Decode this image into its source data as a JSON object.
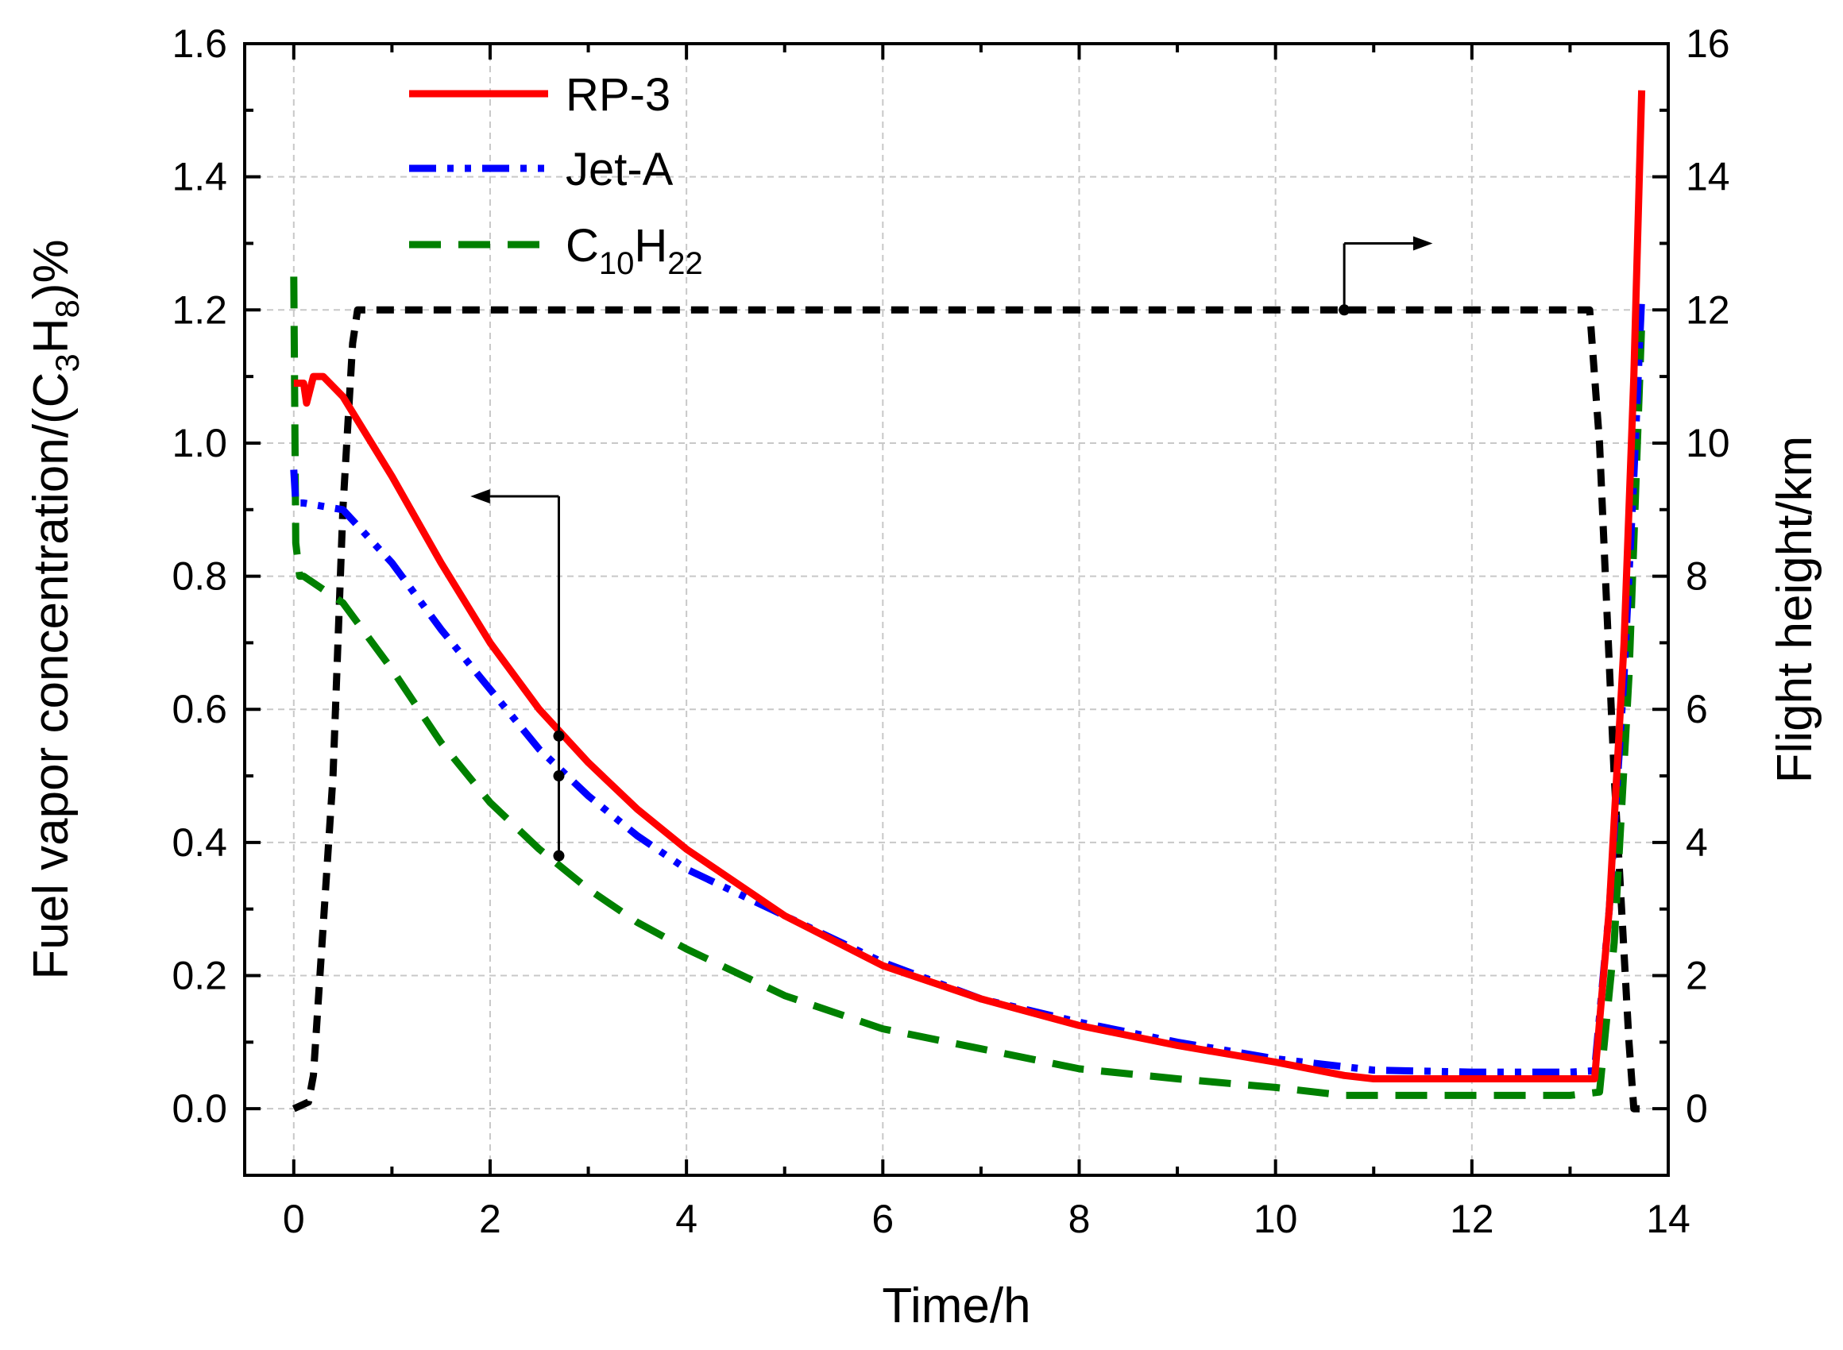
{
  "chart_data": {
    "type": "line",
    "title": "",
    "xlabel": "Time/h",
    "ylabel": "Fuel vapor concentration/(C3H8)%",
    "ylabel_parts": {
      "prefix": "Fuel vapor concentration/(C",
      "s1": "3",
      "mid": "H",
      "s2": "8",
      "suffix": ")%"
    },
    "y2label": "Flight height/km",
    "xlim": [
      -0.5,
      14
    ],
    "ylim": [
      -0.1,
      1.6
    ],
    "y2lim": [
      -1,
      16
    ],
    "x_ticks": [
      0,
      2,
      4,
      6,
      8,
      10,
      12,
      14
    ],
    "y_ticks": [
      0.0,
      0.2,
      0.4,
      0.6,
      0.8,
      1.0,
      1.2,
      1.4,
      1.6
    ],
    "y_tick_labels": [
      "0.0",
      "0.2",
      "0.4",
      "0.6",
      "0.8",
      "1.0",
      "1.2",
      "1.4",
      "1.6"
    ],
    "y2_ticks": [
      0,
      2,
      4,
      6,
      8,
      10,
      12,
      14,
      16
    ],
    "grid": true,
    "legend_position": "top-left",
    "colors": {
      "rp3": "#ff0000",
      "jeta": "#0000ff",
      "c10h22": "#008000",
      "height": "#000000",
      "grid": "#c8c8c8"
    },
    "series": [
      {
        "name": "RP-3",
        "axis": "left",
        "style": "solid",
        "x": [
          0,
          0.05,
          0.1,
          0.13,
          0.2,
          0.3,
          0.5,
          1,
          1.5,
          2,
          2.5,
          3,
          3.5,
          4,
          5,
          6,
          7,
          8,
          9,
          10,
          10.7,
          11,
          12,
          13,
          13.25,
          13.4,
          13.55,
          13.65,
          13.73
        ],
        "y": [
          1.09,
          1.09,
          1.09,
          1.06,
          1.1,
          1.1,
          1.07,
          0.95,
          0.82,
          0.7,
          0.6,
          0.52,
          0.45,
          0.39,
          0.29,
          0.215,
          0.165,
          0.125,
          0.095,
          0.07,
          0.05,
          0.045,
          0.045,
          0.045,
          0.045,
          0.3,
          0.7,
          1.1,
          1.53
        ]
      },
      {
        "name": "Jet-A",
        "axis": "left",
        "style": "dash-dot-dot",
        "x": [
          0,
          0.02,
          0.1,
          0.5,
          1,
          1.5,
          2,
          2.5,
          3,
          3.5,
          4,
          5,
          6,
          7,
          8,
          9,
          10,
          11,
          12,
          13,
          13.25,
          13.4,
          13.55,
          13.65,
          13.73
        ],
        "y": [
          0.96,
          0.91,
          0.91,
          0.9,
          0.82,
          0.72,
          0.63,
          0.54,
          0.47,
          0.41,
          0.36,
          0.29,
          0.22,
          0.165,
          0.13,
          0.1,
          0.075,
          0.058,
          0.055,
          0.055,
          0.057,
          0.3,
          0.65,
          0.95,
          1.22
        ]
      },
      {
        "name": "C10H22",
        "axis": "left",
        "style": "dashed",
        "x": [
          0,
          0.02,
          0.06,
          0.1,
          0.5,
          1,
          1.5,
          2,
          2.5,
          3,
          3.5,
          4,
          5,
          6,
          7,
          8,
          9,
          10,
          10.7,
          12,
          13,
          13.3,
          13.45,
          13.6,
          13.73
        ],
        "y": [
          1.25,
          0.85,
          0.8,
          0.8,
          0.76,
          0.66,
          0.55,
          0.46,
          0.39,
          0.33,
          0.28,
          0.24,
          0.17,
          0.12,
          0.09,
          0.06,
          0.045,
          0.032,
          0.02,
          0.02,
          0.02,
          0.025,
          0.25,
          0.65,
          1.18
        ]
      },
      {
        "name": "Flight height",
        "axis": "right",
        "style": "dashed",
        "x": [
          0,
          0.15,
          0.2,
          0.4,
          0.5,
          0.6,
          0.65,
          1,
          4,
          8,
          12,
          13.2,
          13.3,
          13.45,
          13.6,
          13.65,
          13.73
        ],
        "y": [
          0,
          0.1,
          0.5,
          5,
          9,
          11.5,
          12,
          12,
          12,
          12,
          12,
          12,
          10,
          5,
          1,
          0,
          0
        ]
      }
    ],
    "legend_items": [
      {
        "label": "RP-3",
        "series": "RP-3"
      },
      {
        "label": "Jet-A",
        "series": "Jet-A"
      },
      {
        "label_parts": {
          "base": "C",
          "s1": "10",
          "mid": "H",
          "s2": "22"
        },
        "series": "C10H22"
      }
    ],
    "annotations": [
      {
        "type": "arrow-left",
        "label": "left-axis indicator",
        "from": [
          2.7,
          0.56
        ],
        "to": [
          1.8,
          0.92
        ]
      },
      {
        "type": "arrow-right",
        "label": "right-axis indicator",
        "from": [
          10.7,
          1.2
        ],
        "to": [
          11.6,
          1.3
        ]
      }
    ]
  }
}
